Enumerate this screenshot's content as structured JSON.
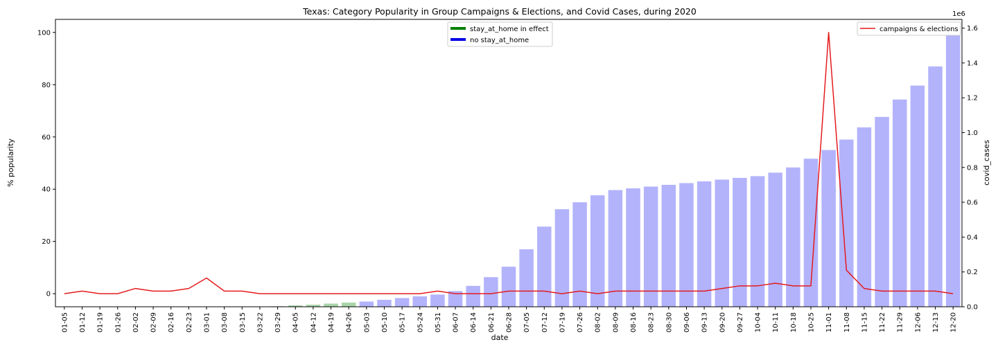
{
  "chart_data": {
    "type": "bar",
    "title": "Texas: Category Popularity in Group Campaigns & Elections, and Covid Cases, during 2020",
    "xlabel": "date",
    "ylabel": "% popularity",
    "y2label": "covid_cases",
    "y2_offset_label": "1e6",
    "ylim": [
      -5,
      105
    ],
    "y_ticks": [
      0,
      20,
      40,
      60,
      80,
      100
    ],
    "y2lim": [
      0,
      1.65
    ],
    "y2_ticks": [
      "0.0",
      "0.2",
      "0.4",
      "0.6",
      "0.8",
      "1.0",
      "1.2",
      "1.4",
      "1.6"
    ],
    "categories": [
      "01-05",
      "01-12",
      "01-19",
      "01-26",
      "02-02",
      "02-09",
      "02-16",
      "02-23",
      "03-01",
      "03-08",
      "03-15",
      "03-22",
      "03-29",
      "04-05",
      "04-12",
      "04-19",
      "04-26",
      "05-03",
      "05-10",
      "05-17",
      "05-24",
      "05-31",
      "06-07",
      "06-14",
      "06-21",
      "06-28",
      "07-05",
      "07-12",
      "07-19",
      "07-26",
      "08-02",
      "08-09",
      "08-16",
      "08-23",
      "08-30",
      "09-06",
      "09-13",
      "09-20",
      "09-27",
      "10-04",
      "10-11",
      "10-18",
      "10-25",
      "11-01",
      "11-08",
      "11-15",
      "11-22",
      "11-29",
      "12-06",
      "12-13",
      "12-20"
    ],
    "line_series": {
      "name": "campaigns & elections",
      "color": "#e41a1c",
      "values": [
        0,
        1,
        0,
        0,
        2,
        1,
        1,
        2,
        6,
        1,
        1,
        0,
        0,
        0,
        0,
        0,
        0,
        0,
        0,
        0,
        0,
        1,
        0,
        0,
        0,
        1,
        1,
        1,
        0,
        1,
        0,
        1,
        1,
        1,
        1,
        1,
        1,
        2,
        3,
        3,
        4,
        3,
        3,
        100,
        9,
        2,
        1,
        1,
        1,
        1,
        0
      ]
    },
    "bar_series": {
      "name": "covid_cases",
      "values": [
        0,
        0,
        0,
        0,
        0,
        0,
        0,
        0,
        0,
        0,
        0,
        0.0005,
        0.003,
        0.008,
        0.012,
        0.018,
        0.024,
        0.03,
        0.04,
        0.05,
        0.06,
        0.07,
        0.09,
        0.12,
        0.17,
        0.23,
        0.33,
        0.46,
        0.56,
        0.6,
        0.64,
        0.67,
        0.68,
        0.69,
        0.7,
        0.71,
        0.72,
        0.73,
        0.74,
        0.75,
        0.77,
        0.8,
        0.85,
        0.9,
        0.96,
        1.03,
        1.09,
        1.19,
        1.27,
        1.38,
        1.59
      ],
      "stay_at_home_index_range": [
        12,
        16
      ],
      "color_stay_at_home": "#a9d5a9",
      "color_no_stay_at_home": "#b3b3fc"
    },
    "legend_left": {
      "position": "top-center",
      "items": [
        {
          "label": "stay_at_home in effect",
          "color": "#008000"
        },
        {
          "label": "no stay_at_home",
          "color": "#0000e6"
        }
      ]
    },
    "legend_right": {
      "position": "top-right",
      "items": [
        {
          "label": "campaigns & elections",
          "color": "#e41a1c"
        }
      ]
    }
  }
}
